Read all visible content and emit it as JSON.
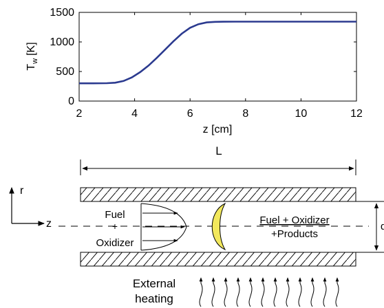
{
  "chart_data": {
    "type": "line",
    "xlabel": "z [cm]",
    "ylabel_main": "T",
    "ylabel_sub": "w",
    "ylabel_unit": "[K]",
    "xlim": [
      2,
      12
    ],
    "ylim": [
      0,
      1500
    ],
    "xticks": [
      2,
      4,
      6,
      8,
      10,
      12
    ],
    "yticks": [
      0,
      500,
      1000,
      1500
    ],
    "grid": false,
    "color": "#2b3a8f",
    "series": [
      {
        "x": [
          2.0,
          2.5,
          3.0,
          3.3,
          3.6,
          3.9,
          4.2,
          4.5,
          4.8,
          5.1,
          5.4,
          5.7,
          6.0,
          6.3,
          6.6,
          6.9,
          7.2,
          7.6,
          8.0,
          9.0,
          10.0,
          11.0,
          12.0
        ],
        "y": [
          300,
          300,
          302,
          310,
          340,
          400,
          490,
          600,
          730,
          870,
          1010,
          1140,
          1240,
          1300,
          1330,
          1340,
          1342,
          1343,
          1343,
          1343,
          1343,
          1343,
          1343
        ]
      }
    ]
  },
  "diagram": {
    "length_label": "L",
    "r_axis_label": "r",
    "z_axis_label": "z",
    "inlet_fuel": "Fuel",
    "inlet_plus": "+",
    "inlet_oxidizer": "Oxidizer",
    "outlet_line1": "Fuel + Oxidizer",
    "outlet_line2": "+Products",
    "diameter_label": "d",
    "heating_line1": "External",
    "heating_line2": "heating",
    "flame_color": "#f2e85c",
    "heating_arrow_count": 12
  }
}
